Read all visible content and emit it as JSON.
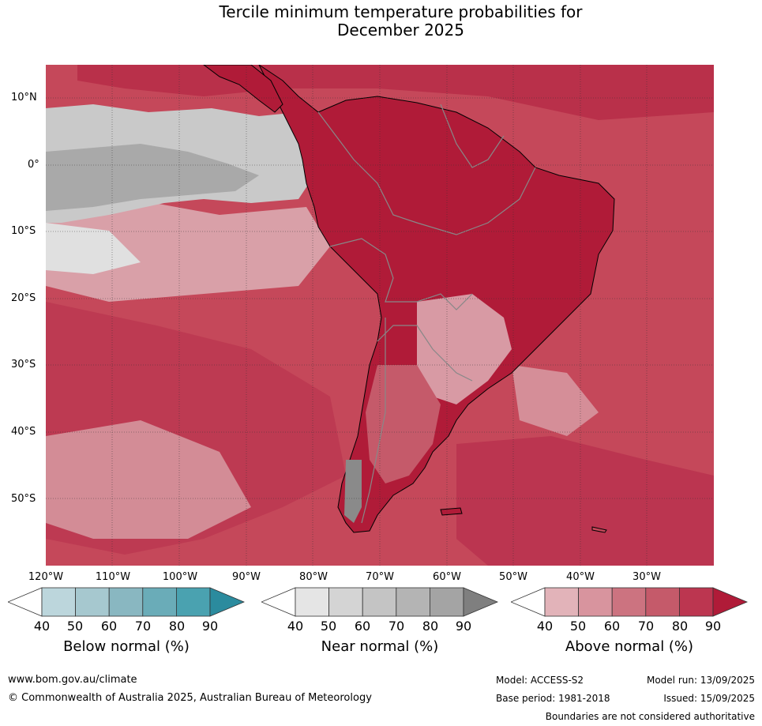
{
  "title": {
    "line1": "Tercile minimum temperature probabilities for",
    "line2": "December 2025"
  },
  "map": {
    "latitude_labels": [
      "10°N",
      "0°",
      "10°S",
      "20°S",
      "30°S",
      "40°S",
      "50°S"
    ],
    "longitude_labels": [
      "120°W",
      "110°W",
      "100°W",
      "90°W",
      "80°W",
      "70°W",
      "60°W",
      "50°W",
      "40°W",
      "30°W"
    ],
    "ocean_color": "#c5485a",
    "land_color": "#b01b38"
  },
  "legends": [
    {
      "label": "Below normal (%)",
      "ticks": [
        "40",
        "50",
        "60",
        "70",
        "80",
        "90"
      ],
      "colors": [
        "#ffffff",
        "#bcd6dc",
        "#a6c8cf",
        "#89b7c1",
        "#6aacb8",
        "#4aa2b0",
        "#2b8b9e"
      ]
    },
    {
      "label": "Near normal (%)",
      "ticks": [
        "40",
        "50",
        "60",
        "70",
        "80",
        "90"
      ],
      "colors": [
        "#ffffff",
        "#e5e5e5",
        "#d4d4d4",
        "#c4c4c4",
        "#b4b4b4",
        "#a4a4a4",
        "#7f7f7f"
      ]
    },
    {
      "label": "Above normal (%)",
      "ticks": [
        "40",
        "50",
        "60",
        "70",
        "80",
        "90"
      ],
      "colors": [
        "#ffffff",
        "#e2b3b9",
        "#d8949e",
        "#cc7380",
        "#c55a6a",
        "#bc3650",
        "#b01b38"
      ]
    }
  ],
  "footer": {
    "website": "www.bom.gov.au/climate",
    "copyright": "© Commonwealth of Australia 2025, Australian Bureau of Meteorology",
    "model": "Model: ACCESS-S2",
    "base_period": "Base period: 1981-2018",
    "model_run": "Model run: 13/09/2025",
    "issued": "Issued: 15/09/2025",
    "disclaimer": "Boundaries are not considered authoritative"
  }
}
